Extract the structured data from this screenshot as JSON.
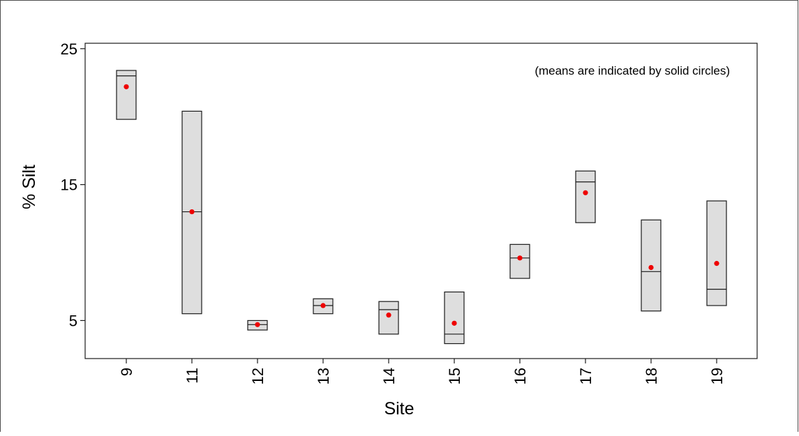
{
  "chart_data": {
    "type": "range-box",
    "title": "",
    "xlabel": "Site",
    "ylabel": "% Silt",
    "annotation": "(means are indicated by solid circles)",
    "ylim": [
      2.2,
      25.4
    ],
    "yticks": [
      {
        "value": 5,
        "label": "5"
      },
      {
        "value": 15,
        "label": "15"
      },
      {
        "value": 25,
        "label": "25"
      }
    ],
    "grid": false,
    "categories": [
      "9",
      "11",
      "12",
      "13",
      "14",
      "15",
      "16",
      "17",
      "18",
      "19"
    ],
    "boxes": [
      {
        "site": "9",
        "min": 19.8,
        "max": 23.4,
        "median": 23.0,
        "mean": 22.2
      },
      {
        "site": "11",
        "min": 5.5,
        "max": 20.4,
        "median": 13.0,
        "mean": 13.0
      },
      {
        "site": "12",
        "min": 4.3,
        "max": 5.0,
        "median": 4.7,
        "mean": 4.7
      },
      {
        "site": "13",
        "min": 5.5,
        "max": 6.6,
        "median": 6.1,
        "mean": 6.1
      },
      {
        "site": "14",
        "min": 4.0,
        "max": 6.4,
        "median": 5.8,
        "mean": 5.4
      },
      {
        "site": "15",
        "min": 3.3,
        "max": 7.1,
        "median": 4.0,
        "mean": 4.8
      },
      {
        "site": "16",
        "min": 8.1,
        "max": 10.6,
        "median": 9.6,
        "mean": 9.6
      },
      {
        "site": "17",
        "min": 12.2,
        "max": 16.0,
        "median": 15.2,
        "mean": 14.4
      },
      {
        "site": "18",
        "min": 5.7,
        "max": 12.4,
        "median": 8.6,
        "mean": 8.9
      },
      {
        "site": "19",
        "min": 6.1,
        "max": 13.8,
        "median": 7.3,
        "mean": 9.2
      }
    ],
    "colors": {
      "box_fill": "#dedede",
      "box_stroke": "#1a1a1a",
      "mean_marker": "#ee0000"
    }
  }
}
